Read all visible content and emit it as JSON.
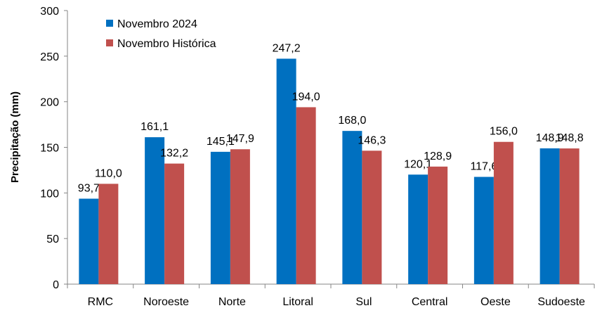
{
  "chart_data": {
    "type": "bar",
    "title": "",
    "xlabel": "",
    "ylabel": "Precipitação (mm)",
    "ylim": [
      0,
      300
    ],
    "yticks": [
      "0",
      "50",
      "100",
      "150",
      "200",
      "250",
      "300"
    ],
    "ytick_values": [
      0,
      50,
      100,
      150,
      200,
      250,
      300
    ],
    "categories": [
      "RMC",
      "Noroeste",
      "Norte",
      "Litoral",
      "Sul",
      "Central",
      "Oeste",
      "Sudoeste"
    ],
    "series": [
      {
        "name": "Novembro 2024",
        "color": "#0070C0",
        "values": [
          93.7,
          161.1,
          145.1,
          247.2,
          168.0,
          120.1,
          117.6,
          148.9
        ],
        "labels": [
          "93,7",
          "161,1",
          "145,1",
          "247,2",
          "168,0",
          "120,1",
          "117,6",
          "148,9"
        ]
      },
      {
        "name": "Novembro Histórica",
        "color": "#C0504D",
        "values": [
          110.0,
          132.2,
          147.9,
          194.0,
          146.3,
          128.9,
          156.0,
          148.8
        ],
        "labels": [
          "110,0",
          "132,2",
          "147,9",
          "194,0",
          "146,3",
          "128,9",
          "156,0",
          "148,8"
        ]
      }
    ],
    "grid": false,
    "legend_position": "top-left"
  }
}
